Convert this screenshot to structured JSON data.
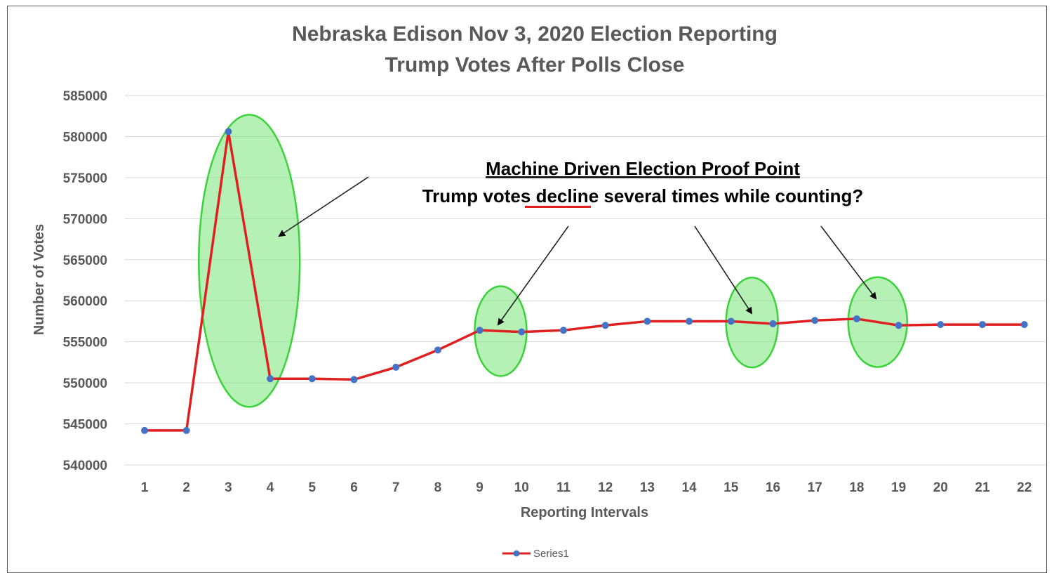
{
  "chart_data": {
    "type": "line",
    "title_line1": "Nebraska Edison Nov 3, 2020 Election Reporting",
    "title_line2": "Trump Votes After Polls Close",
    "xlabel": "Reporting Intervals",
    "ylabel": "Number of Votes",
    "ylim": [
      540000,
      585000
    ],
    "yticks": [
      "585000",
      "580000",
      "575000",
      "570000",
      "565000",
      "560000",
      "555000",
      "550000",
      "545000",
      "540000"
    ],
    "categories": [
      "1",
      "2",
      "3",
      "4",
      "5",
      "6",
      "7",
      "8",
      "9",
      "10",
      "11",
      "12",
      "13",
      "14",
      "15",
      "16",
      "17",
      "18",
      "19",
      "20",
      "21",
      "22"
    ],
    "series": [
      {
        "name": "Series1",
        "values": [
          544200,
          544200,
          580600,
          550500,
          550500,
          550400,
          551900,
          554000,
          556400,
          556200,
          556400,
          557000,
          557500,
          557500,
          557500,
          557200,
          557600,
          557800,
          557000,
          557100,
          557100,
          557100
        ]
      }
    ],
    "grid": true,
    "legend": "bottom",
    "colors": {
      "line": "#e02020",
      "marker": "#4472c4",
      "highlight": "#78e678",
      "highlight_stroke": "#3cd23c"
    },
    "annotation": {
      "heading": "Machine Driven Election Proof Point",
      "text_before": "Trump votes ",
      "text_emph": "decline",
      "text_after": " several times while counting?"
    }
  }
}
